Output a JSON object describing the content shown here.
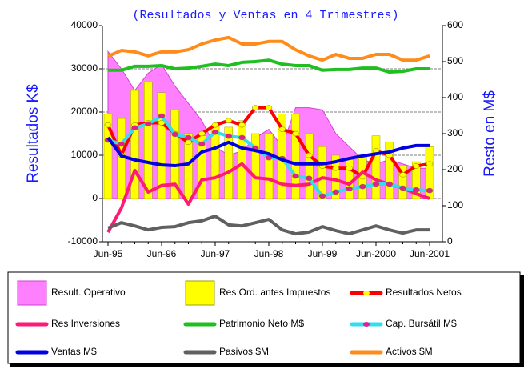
{
  "chart_data": {
    "type": "combo",
    "subtitle": "(Resultados y Ventas en 4 Trimestres)",
    "ylabel": "Resultados K$",
    "y2label": "Resto en M$",
    "categories": [
      "Jun-95",
      null,
      null,
      null,
      "Jun-96",
      null,
      null,
      null,
      "Jun-97",
      null,
      null,
      null,
      "Jun-98",
      null,
      null,
      null,
      "Jun-99",
      null,
      null,
      null,
      "Jun-2000",
      null,
      null,
      null,
      "Jun-2001"
    ],
    "ylim": [
      -10000,
      40000
    ],
    "yticks": [
      -10000,
      0,
      10000,
      20000,
      30000,
      40000
    ],
    "y2lim": [
      0,
      600
    ],
    "y2ticks": [
      0,
      100,
      200,
      300,
      400,
      500,
      600
    ],
    "grid": true,
    "series": [
      {
        "name": "Result. Operativo",
        "type": "area",
        "color": "#ff80ff",
        "axis": "y",
        "values": [
          34000,
          30000,
          25000,
          29000,
          31000,
          26000,
          22000,
          18000,
          12000,
          10000,
          11000,
          14000,
          16000,
          12000,
          21000,
          21000,
          20500,
          15000,
          12000,
          9000,
          8000,
          9000,
          8000,
          7000,
          7000
        ]
      },
      {
        "name": "Res Ord. antes Impuestos",
        "type": "bar",
        "color": "#ffff00",
        "axis": "y",
        "values": [
          19500,
          18500,
          25000,
          27000,
          24500,
          20500,
          15000,
          14500,
          17000,
          16500,
          18000,
          15000,
          15000,
          19500,
          19500,
          15000,
          12000,
          10000,
          9000,
          10000,
          14500,
          13000,
          7500,
          8500,
          12000
        ]
      },
      {
        "name": "Resultados Netos",
        "type": "line",
        "marker": true,
        "color": "#ff0000",
        "axis": "y",
        "values": [
          17000,
          10000,
          17000,
          17500,
          17500,
          15000,
          13000,
          15000,
          17000,
          18000,
          17000,
          21000,
          21000,
          16000,
          15000,
          10000,
          7500,
          7000,
          7000,
          5000,
          11000,
          10000,
          5500,
          7500,
          8000
        ]
      },
      {
        "name": "Res Inversiones",
        "type": "line",
        "color": "#ff1a75",
        "axis": "y",
        "values": [
          -7800,
          -2200,
          6500,
          1500,
          3000,
          3300,
          -1300,
          4300,
          4800,
          6100,
          8000,
          4800,
          4500,
          3300,
          3000,
          3300,
          4800,
          4300,
          3300,
          6100,
          4300,
          3300,
          2400,
          1100,
          0
        ]
      },
      {
        "name": "Patrimonio Neto M$",
        "type": "line",
        "color": "#1fbf1f",
        "axis": "y2",
        "values": [
          476,
          476,
          487,
          487,
          489,
          480,
          482,
          487,
          493,
          489,
          498,
          500,
          504,
          493,
          489,
          489,
          476,
          478,
          478,
          482,
          482,
          471,
          473,
          480,
          480
        ]
      },
      {
        "name": "Cap. Bursátil M$",
        "type": "line",
        "marker": true,
        "color": "#33ddee",
        "axis": "y2",
        "values": [
          282,
          271,
          316,
          327,
          349,
          298,
          289,
          271,
          304,
          293,
          289,
          260,
          233,
          231,
          182,
          176,
          127,
          138,
          147,
          153,
          160,
          160,
          149,
          144,
          142
        ]
      },
      {
        "name": "Ventas M$",
        "type": "line",
        "color": "#0000e0",
        "axis": "y2",
        "values": [
          289,
          238,
          227,
          220,
          213,
          211,
          216,
          249,
          260,
          276,
          260,
          253,
          244,
          227,
          216,
          216,
          216,
          222,
          231,
          238,
          244,
          249,
          260,
          267,
          267
        ]
      },
      {
        "name": "Pasivos $M",
        "type": "line",
        "color": "#606060",
        "axis": "y2",
        "values": [
          38,
          53,
          44,
          33,
          40,
          42,
          53,
          58,
          71,
          47,
          44,
          53,
          62,
          33,
          22,
          27,
          42,
          31,
          22,
          33,
          44,
          33,
          24,
          33,
          33
        ]
      },
      {
        "name": "Activos $M",
        "type": "line",
        "color": "#ff8c1a",
        "axis": "y2",
        "values": [
          515,
          531,
          527,
          516,
          527,
          527,
          533,
          549,
          560,
          567,
          549,
          549,
          556,
          556,
          533,
          516,
          504,
          520,
          509,
          509,
          520,
          520,
          504,
          504,
          516
        ]
      }
    ]
  }
}
